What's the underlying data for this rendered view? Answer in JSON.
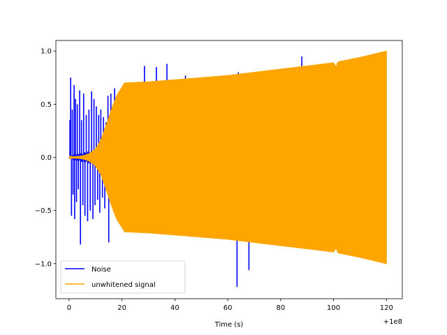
{
  "chart_data": {
    "type": "line",
    "xlabel": "Time (s)",
    "ylabel": "",
    "x_offset_label": "+1e8",
    "xlim": [
      -5,
      126
    ],
    "ylim": [
      -1.33,
      1.1
    ],
    "xticks": [
      0,
      20,
      40,
      60,
      80,
      100,
      120
    ],
    "xtick_labels": [
      "0",
      "20",
      "40",
      "60",
      "80",
      "100",
      "120"
    ],
    "yticks": [
      -1.0,
      -0.5,
      0.0,
      0.5,
      1.0
    ],
    "ytick_labels": [
      "−1.0",
      "−0.5",
      "0.0",
      "0.5",
      "1.0"
    ],
    "grid": false,
    "legend_position": "lower-left",
    "series": [
      {
        "name": "Noise",
        "color": "#0000ff",
        "x_range": [
          0,
          120
        ],
        "envelope": {
          "x": [
            0,
            2,
            4,
            6,
            8,
            10,
            12,
            14,
            16,
            18,
            20,
            120
          ],
          "upper": [
            0.01,
            0.03,
            0.04,
            0.05,
            0.06,
            0.07,
            0.09,
            0.12,
            0.16,
            0.2,
            0.22,
            0.22
          ],
          "lower": [
            -0.01,
            -0.03,
            -0.04,
            -0.05,
            -0.06,
            -0.07,
            -0.09,
            -0.12,
            -0.16,
            -0.2,
            -0.22,
            -0.22
          ]
        },
        "spikes": [
          {
            "x": 0.3,
            "y": 0.35
          },
          {
            "x": 0.6,
            "y": 0.75
          },
          {
            "x": 0.9,
            "y": -0.55
          },
          {
            "x": 1.2,
            "y": 0.45
          },
          {
            "x": 1.5,
            "y": -0.35
          },
          {
            "x": 1.9,
            "y": 0.68
          },
          {
            "x": 2.1,
            "y": -0.58
          },
          {
            "x": 2.4,
            "y": 0.55
          },
          {
            "x": 2.8,
            "y": -0.42
          },
          {
            "x": 3.1,
            "y": 0.5
          },
          {
            "x": 3.5,
            "y": -0.3
          },
          {
            "x": 4.0,
            "y": 0.63
          },
          {
            "x": 4.3,
            "y": -0.82
          },
          {
            "x": 4.7,
            "y": 0.35
          },
          {
            "x": 5.2,
            "y": -0.45
          },
          {
            "x": 5.5,
            "y": 0.6
          },
          {
            "x": 6.0,
            "y": -0.55
          },
          {
            "x": 6.5,
            "y": 0.4
          },
          {
            "x": 7.0,
            "y": -0.6
          },
          {
            "x": 7.5,
            "y": 0.45
          },
          {
            "x": 8.0,
            "y": -0.5
          },
          {
            "x": 8.5,
            "y": 0.62
          },
          {
            "x": 9.0,
            "y": -0.58
          },
          {
            "x": 9.4,
            "y": 0.55
          },
          {
            "x": 9.8,
            "y": -0.45
          },
          {
            "x": 10.3,
            "y": 0.48
          },
          {
            "x": 10.8,
            "y": -0.4
          },
          {
            "x": 11.2,
            "y": 0.4
          },
          {
            "x": 11.6,
            "y": -0.52
          },
          {
            "x": 12.0,
            "y": 0.45
          },
          {
            "x": 12.6,
            "y": -0.38
          },
          {
            "x": 13.0,
            "y": 0.38
          },
          {
            "x": 13.5,
            "y": -0.48
          },
          {
            "x": 14.0,
            "y": 0.33
          },
          {
            "x": 14.7,
            "y": 0.58
          },
          {
            "x": 15.0,
            "y": -0.8
          },
          {
            "x": 15.8,
            "y": 0.6
          },
          {
            "x": 16.3,
            "y": -0.45
          },
          {
            "x": 17.2,
            "y": 0.65
          },
          {
            "x": 18.0,
            "y": -0.5
          },
          {
            "x": 18.5,
            "y": 0.56
          },
          {
            "x": 20.0,
            "y": -0.48
          },
          {
            "x": 22.0,
            "y": -0.55
          },
          {
            "x": 24.0,
            "y": 0.6
          },
          {
            "x": 26.0,
            "y": -0.53
          },
          {
            "x": 28.5,
            "y": 0.86
          },
          {
            "x": 29.0,
            "y": -0.52
          },
          {
            "x": 30.0,
            "y": 0.62
          },
          {
            "x": 31.5,
            "y": -0.6
          },
          {
            "x": 33.0,
            "y": 0.85
          },
          {
            "x": 35.0,
            "y": -0.55
          },
          {
            "x": 37.0,
            "y": 0.88
          },
          {
            "x": 38.5,
            "y": -0.65
          },
          {
            "x": 40.0,
            "y": 0.68
          },
          {
            "x": 44.0,
            "y": 0.77
          },
          {
            "x": 46.0,
            "y": -0.6
          },
          {
            "x": 50.0,
            "y": 0.7
          },
          {
            "x": 55.0,
            "y": -0.62
          },
          {
            "x": 57.0,
            "y": 0.73
          },
          {
            "x": 62.0,
            "y": 0.78
          },
          {
            "x": 63.5,
            "y": -1.22
          },
          {
            "x": 64.0,
            "y": 0.8
          },
          {
            "x": 65.5,
            "y": 0.78
          },
          {
            "x": 66.0,
            "y": -0.67
          },
          {
            "x": 68.0,
            "y": -1.06
          },
          {
            "x": 70.0,
            "y": 0.75
          },
          {
            "x": 74.0,
            "y": -0.7
          },
          {
            "x": 77.0,
            "y": 0.7
          },
          {
            "x": 80.0,
            "y": 0.73
          },
          {
            "x": 85.0,
            "y": -0.7
          },
          {
            "x": 88.0,
            "y": 0.95
          },
          {
            "x": 90.0,
            "y": 0.72
          },
          {
            "x": 95.0,
            "y": -0.75
          },
          {
            "x": 100.0,
            "y": 0.8
          },
          {
            "x": 104.0,
            "y": -0.8
          },
          {
            "x": 110.0,
            "y": 0.85
          },
          {
            "x": 115.0,
            "y": -0.85
          }
        ]
      },
      {
        "name": "unwhitened signal",
        "color": "#ffa500",
        "x_range": [
          0,
          120
        ],
        "envelope": {
          "x": [
            0,
            4,
            6,
            8,
            10,
            12,
            14,
            16,
            18,
            20,
            21,
            30,
            40,
            50,
            60,
            70,
            80,
            90,
            100,
            101,
            101.5,
            102,
            110,
            120
          ],
          "upper": [
            0.005,
            0.01,
            0.02,
            0.04,
            0.08,
            0.16,
            0.3,
            0.45,
            0.58,
            0.66,
            0.7,
            0.71,
            0.73,
            0.75,
            0.77,
            0.8,
            0.83,
            0.86,
            0.89,
            0.85,
            0.89,
            0.9,
            0.94,
            1.0
          ],
          "lower": [
            -0.005,
            -0.01,
            -0.02,
            -0.04,
            -0.08,
            -0.16,
            -0.3,
            -0.45,
            -0.58,
            -0.66,
            -0.7,
            -0.71,
            -0.73,
            -0.75,
            -0.77,
            -0.8,
            -0.83,
            -0.86,
            -0.89,
            -0.85,
            -0.89,
            -0.9,
            -0.94,
            -1.0
          ]
        }
      }
    ]
  }
}
